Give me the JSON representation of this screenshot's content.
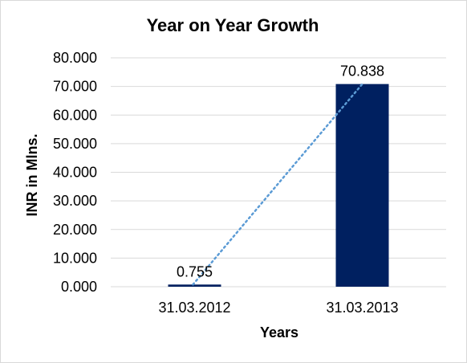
{
  "colors": {
    "bar": "#002060",
    "trendline": "#5b9bd5",
    "gridline": "#d9d9d9",
    "axis_line": "#d9d9d9"
  },
  "chart_data": {
    "type": "bar",
    "title": "Year on Year Growth",
    "xlabel": "Years",
    "ylabel": "INR in Mlns.",
    "categories": [
      "31.03.2012",
      "31.03.2013"
    ],
    "values": [
      0.755,
      70.838
    ],
    "data_labels": [
      "0.755",
      "70.838"
    ],
    "ylim": [
      0,
      80
    ],
    "y_ticks": [
      0,
      10,
      20,
      30,
      40,
      50,
      60,
      70,
      80
    ],
    "y_tick_labels": [
      "0.000",
      "10.000",
      "20.000",
      "30.000",
      "40.000",
      "50.000",
      "60.000",
      "70.000",
      "80.000"
    ],
    "grid": true,
    "legend": "none",
    "trendline": "linear dotted"
  }
}
